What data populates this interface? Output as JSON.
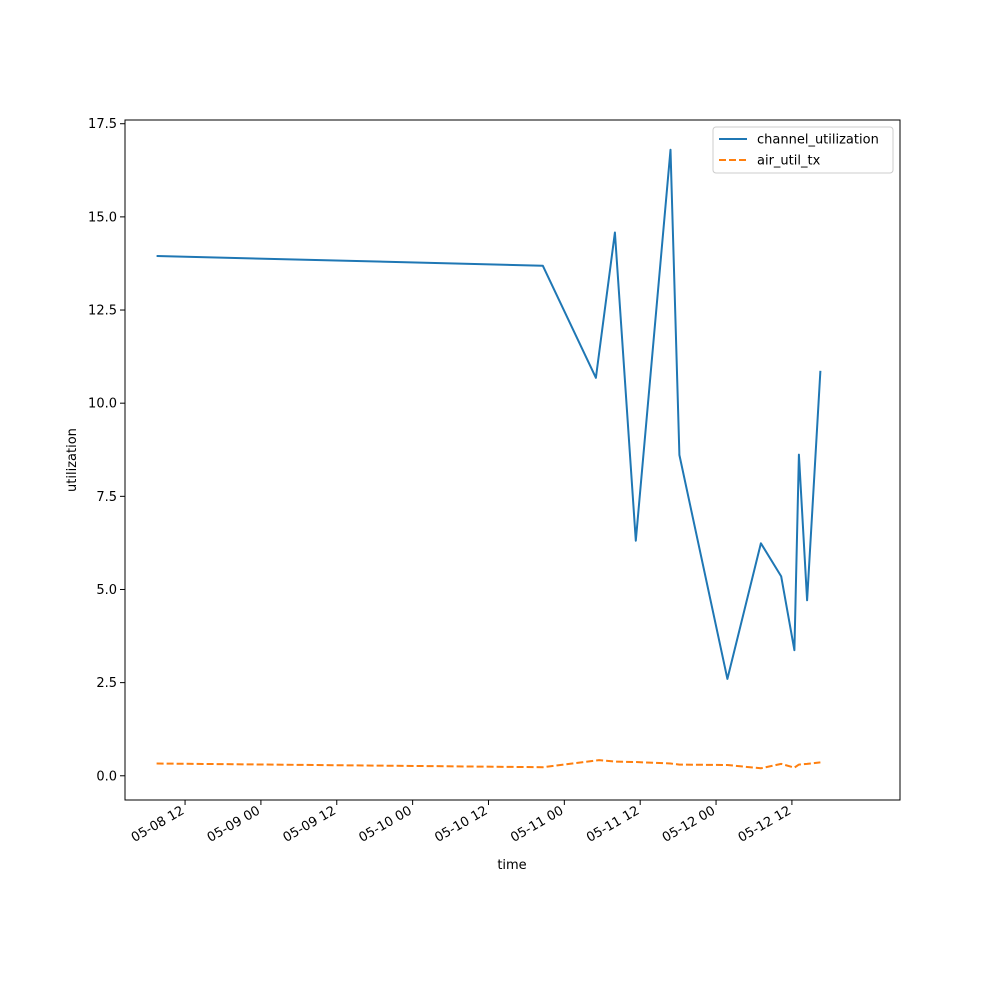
{
  "chart_data": {
    "type": "line",
    "title": "",
    "xlabel": "time",
    "ylabel": "utilization",
    "x_axis_type": "datetime",
    "xlim": [
      "2024-05-08 02:30",
      "2024-05-13 05:06"
    ],
    "ylim": [
      -0.65,
      17.6
    ],
    "x_ticks": [
      "05-08 12",
      "05-09 00",
      "05-09 12",
      "05-10 00",
      "05-10 12",
      "05-11 00",
      "05-11 12",
      "05-12 00",
      "05-12 12"
    ],
    "y_ticks": [
      "0.0",
      "2.5",
      "5.0",
      "7.5",
      "10.0",
      "12.5",
      "15.0",
      "17.5"
    ],
    "grid": false,
    "legend_position": "top-right",
    "series": [
      {
        "name": "channel_utilization",
        "color": "#1f77b4",
        "style": "solid",
        "points": [
          [
            "2024-05-08 07:30",
            13.95
          ],
          [
            "2024-05-10 20:36",
            13.69
          ],
          [
            "2024-05-11 05:00",
            10.68
          ],
          [
            "2024-05-11 08:00",
            14.58
          ],
          [
            "2024-05-11 11:18",
            6.31
          ],
          [
            "2024-05-11 16:48",
            16.8
          ],
          [
            "2024-05-11 18:12",
            8.61
          ],
          [
            "2024-05-12 01:48",
            2.6
          ],
          [
            "2024-05-12 07:06",
            6.24
          ],
          [
            "2024-05-12 10:18",
            5.35
          ],
          [
            "2024-05-12 12:24",
            3.37
          ],
          [
            "2024-05-12 13:06",
            8.62
          ],
          [
            "2024-05-12 14:24",
            4.71
          ],
          [
            "2024-05-12 16:30",
            10.87
          ]
        ]
      },
      {
        "name": "air_util_tx",
        "color": "#ff7f0e",
        "style": "dashed",
        "points": [
          [
            "2024-05-08 07:30",
            0.33
          ],
          [
            "2024-05-10 20:36",
            0.23
          ],
          [
            "2024-05-11 05:30",
            0.42
          ],
          [
            "2024-05-11 08:00",
            0.38
          ],
          [
            "2024-05-11 11:18",
            0.37
          ],
          [
            "2024-05-11 16:48",
            0.33
          ],
          [
            "2024-05-11 18:12",
            0.3
          ],
          [
            "2024-05-12 01:48",
            0.29
          ],
          [
            "2024-05-12 07:06",
            0.2
          ],
          [
            "2024-05-12 10:18",
            0.32
          ],
          [
            "2024-05-12 12:24",
            0.22
          ],
          [
            "2024-05-12 13:06",
            0.3
          ],
          [
            "2024-05-12 14:24",
            0.32
          ],
          [
            "2024-05-12 16:30",
            0.36
          ]
        ]
      }
    ]
  }
}
